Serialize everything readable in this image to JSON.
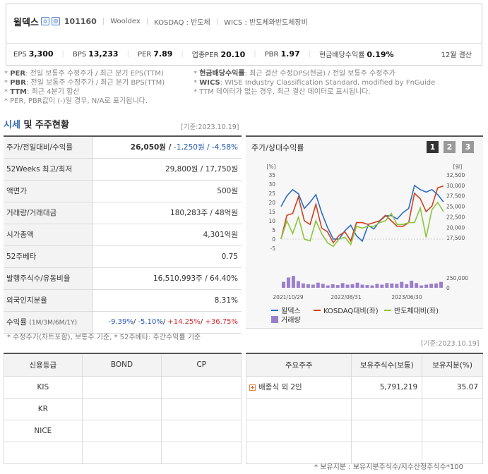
{
  "header": {
    "company": "윌덱스",
    "code": "101160",
    "eng_name": "Wooldex",
    "market": "KOSDAQ : 반도체",
    "wics": "WICS : 반도체와반도체장비",
    "metrics": [
      {
        "label": "EPS",
        "value": "3,300"
      },
      {
        "label": "BPS",
        "value": "13,233"
      },
      {
        "label": "PER",
        "value": "7.89"
      },
      {
        "label": "업종PER",
        "value": "20.10"
      },
      {
        "label": "PBR",
        "value": "1.97"
      },
      {
        "label": "현금배당수익률",
        "value": "0.19%"
      }
    ],
    "fiscal": "12월 결산"
  },
  "notes": {
    "l1_key": "PER",
    "l1_text": ": 전일 보통주 수정주가 / 최근 분기 EPS(TTM)",
    "l2_key": "PBR",
    "l2_text": ": 전일 보통주 수정주가 / 최근 분기 BPS(TTM)",
    "l3_key": "TTM",
    "l3_text": ": 최근 4분기 합산",
    "l4_text": "* PER, PBR값이 (-)일 경우, N/A로 표기됩니다.",
    "r1_key": "현금배당수익률",
    "r1_text": ": 최근 결산 수정DPS(현금) / 전일 보통주 수정주가",
    "r2_key": "WICS",
    "r2_text": ": WISE Industry Classification Standard, modified by FnGuide",
    "r3_text": "* TTM 데이터가 없는 경우, 최근 결산 데이터로 표시됩니다."
  },
  "section": {
    "title_hl": "시세",
    "title_rest": " 및 주주현황",
    "date": "[기준:2023.10.19]"
  },
  "price_table": [
    {
      "k": "주가/전일대비/수익률",
      "v1": "26,050원 / ",
      "v2": "-1,250원 / ",
      "v3": "-4.58%"
    },
    {
      "k": "52Weeks 최고/최저",
      "v": "29,800원 / 17,750원"
    },
    {
      "k": "액면가",
      "v": "500원"
    },
    {
      "k": "거래량/거래대금",
      "v": "180,283주 / 48억원"
    },
    {
      "k": "시가총액",
      "v": "4,301억원"
    },
    {
      "k": "52주베타",
      "v": "0.75"
    },
    {
      "k": "발행주식수/유동비율",
      "v": "16,510,993주 / 64.40%"
    },
    {
      "k": "외국인지분율",
      "v": "8.31%"
    },
    {
      "k": "수익률",
      "k_sub": "(1M/3M/6M/1Y)",
      "r1": "-9.39%",
      "r2": "-5.10%",
      "r3": "+14.25%",
      "r4": "+36.75%"
    }
  ],
  "price_note": "* 수정주가(차트포함), 보통주 기준, * 52주베타: 주간수익률 기준",
  "chart_panel": {
    "title": "주가/상대수익률",
    "pages": [
      "1",
      "2",
      "3"
    ],
    "unit_left": "[%]",
    "unit_right": "[원]"
  },
  "chart_data": {
    "type": "line",
    "x_ticks": [
      "2021/10/29",
      "2022/08/31",
      "2023/06/30"
    ],
    "y_left": {
      "label": "[%]",
      "ticks": [
        -5,
        0,
        5,
        10,
        15,
        20,
        25,
        30,
        35
      ],
      "range": [
        -5,
        35
      ]
    },
    "y_right": {
      "label": "[원]",
      "ticks": [
        17500,
        20000,
        22500,
        25000,
        27500,
        30000,
        32500
      ],
      "range": [
        15000,
        32500
      ]
    },
    "volume_axis": {
      "ticks": [
        0,
        250000
      ],
      "range": [
        0,
        500000
      ]
    },
    "series": [
      {
        "name": "윌덱스",
        "axis": "right",
        "color": "#2b6cc4",
        "values": [
          25000,
          27500,
          29000,
          28000,
          24500,
          26000,
          27800,
          23500,
          20000,
          17200,
          17200,
          19200,
          20500,
          18000,
          16700,
          20500,
          19600,
          21500,
          22700,
          22800,
          22000,
          23500,
          24500,
          30000,
          29000,
          28400,
          29000,
          27800,
          26050
        ]
      },
      {
        "name": "KOSDAQ대비(좌)",
        "axis": "left",
        "color": "#d2401f",
        "values": [
          0,
          13,
          14,
          23,
          10,
          8,
          19,
          6,
          4,
          -2,
          2,
          4,
          -1,
          9,
          9,
          8,
          9,
          10,
          13,
          10,
          7,
          7,
          9,
          25,
          22,
          15,
          18,
          28,
          29
        ]
      },
      {
        "name": "반도체대비(좌)",
        "axis": "left",
        "color": "#8cc63f",
        "values": [
          0,
          10,
          3,
          12,
          0,
          -1,
          10,
          3,
          -2,
          -4,
          0,
          1,
          -3,
          7,
          6,
          7,
          7,
          9,
          10,
          14,
          8,
          8,
          9,
          9,
          17,
          1,
          16,
          20,
          15
        ]
      },
      {
        "name": "거래량",
        "axis": "volume",
        "color": "#9b7fcc",
        "type": "bar",
        "values": [
          150000,
          260000,
          300000,
          170000,
          110000,
          90000,
          80000,
          130000,
          100000,
          60000,
          90000,
          70000,
          120000,
          80000,
          90000,
          130000,
          80000,
          70000,
          60000,
          100000,
          80000,
          120000,
          110000,
          100000,
          150000,
          90000,
          180000,
          120000,
          60000,
          80000,
          100000,
          110000,
          150000
        ]
      }
    ]
  },
  "legend": [
    "윌덱스",
    "KOSDAQ대비(좌)",
    "반도체대비(좌)",
    "거래량"
  ],
  "date2": "[기준:2023.10.19]",
  "credit": {
    "headers": [
      "신용등급",
      "BOND",
      "CP"
    ],
    "rows": [
      "KIS",
      "KR",
      "NICE",
      ""
    ]
  },
  "holders": {
    "headers": [
      "주요주주",
      "보유주식수(보통)",
      "보유지분(%)"
    ],
    "rows": [
      {
        "name": "배종식 외 2인",
        "shares": "5,791,219",
        "pct": "35.07"
      }
    ]
  },
  "footnote": "* 보유지분 : 보유지분주식수/지수산정주식수*100"
}
